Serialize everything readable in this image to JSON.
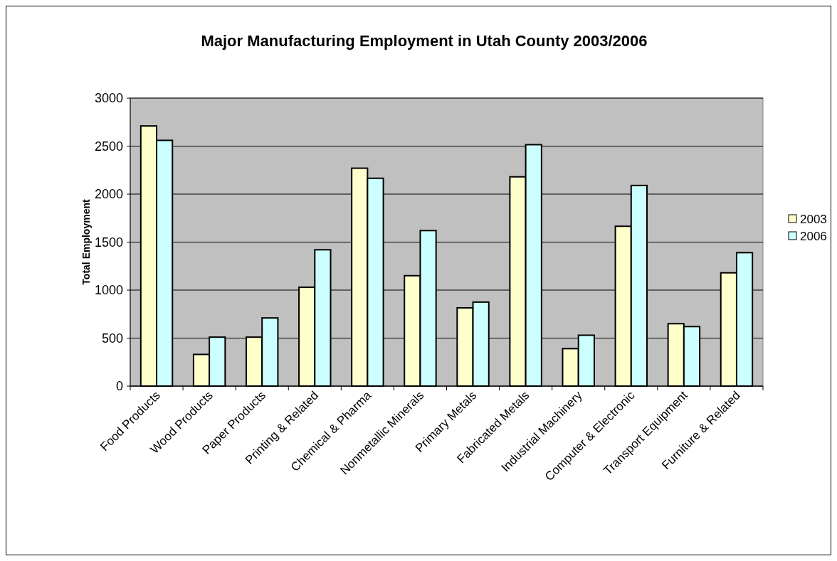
{
  "chart_data": {
    "type": "bar",
    "title": "Major Manufacturing Employment in Utah County 2003/2006",
    "ylabel": "Total Employment",
    "categories": [
      "Food Products",
      "Wood Products",
      "Paper Products",
      "Printing & Related",
      "Chemical & Pharma",
      "Nonmetallic Minerals",
      "Primary Metals",
      "Fabricated Metals",
      "Industrial Machinery",
      "Computer & Electronic",
      "Transport Equipment",
      "Furniture & Related"
    ],
    "series": [
      {
        "name": "2003",
        "color": "#ffffcc",
        "values": [
          2710,
          330,
          510,
          1030,
          2270,
          1150,
          815,
          2180,
          390,
          1665,
          650,
          1180
        ]
      },
      {
        "name": "2006",
        "color": "#ccffff",
        "values": [
          2560,
          510,
          710,
          1420,
          2165,
          1620,
          875,
          2515,
          530,
          2090,
          620,
          1390
        ]
      }
    ],
    "ylim": [
      0,
      3000
    ],
    "yticks": [
      0,
      500,
      1000,
      1500,
      2000,
      2500,
      3000
    ],
    "grid": "y",
    "legend": "right"
  }
}
